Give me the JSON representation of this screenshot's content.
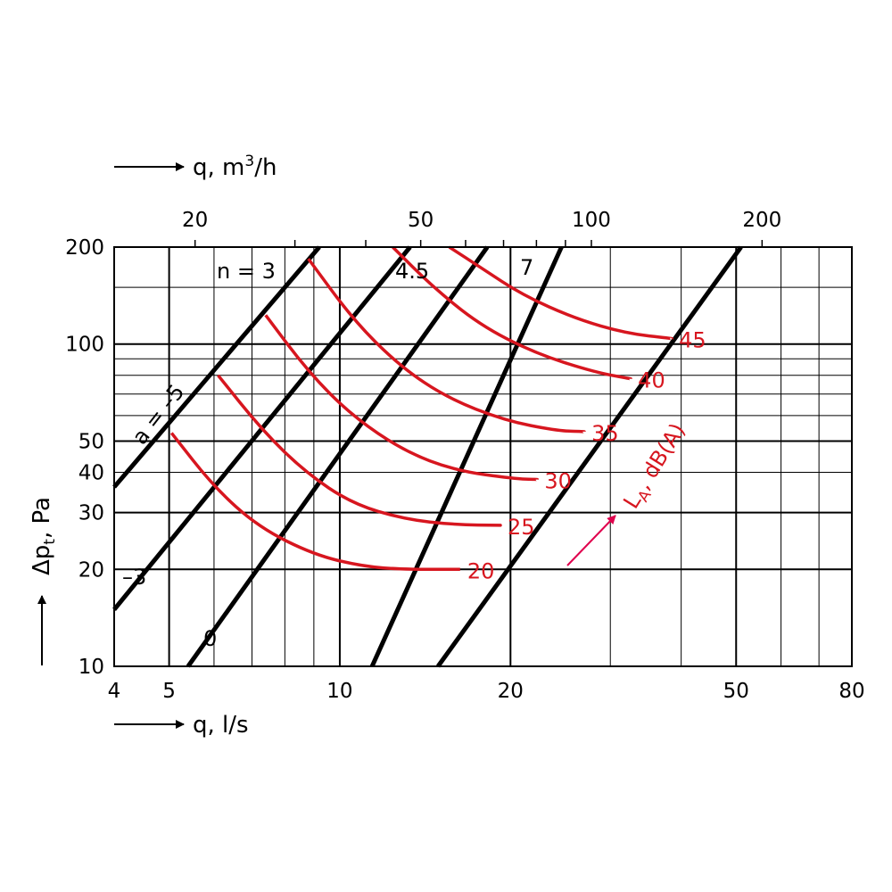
{
  "chart_data": {
    "type": "line",
    "x_scale": "log",
    "y_scale": "log",
    "xlim": [
      4,
      80
    ],
    "ylim": [
      10,
      200
    ],
    "xlabel": "q, l/s",
    "ylabel": "Δp",
    "ylabel_sub": "t",
    "ylabel_unit": ", Pa",
    "x2label": "q, m",
    "x2label_sup": "3",
    "x2label_unit": "/h",
    "x_ticks": [
      4,
      5,
      10,
      20,
      50,
      80
    ],
    "y_ticks": [
      10,
      20,
      30,
      40,
      50,
      100,
      200
    ],
    "x2_ticks": [
      20,
      50,
      100,
      200
    ],
    "grid": true,
    "adjustment_lines": [
      {
        "label": "a = –5",
        "points": [
          [
            4,
            36
          ],
          [
            9.2,
            200
          ]
        ]
      },
      {
        "label": "–3",
        "points": [
          [
            4,
            15
          ],
          [
            13.3,
            200
          ]
        ]
      },
      {
        "label": "0",
        "points": [
          [
            5.4,
            10
          ],
          [
            18.2,
            200
          ]
        ]
      },
      {
        "label": "",
        "points": [
          [
            11.4,
            10
          ],
          [
            24.6,
            200
          ]
        ]
      },
      {
        "label": "",
        "points": [
          [
            14.9,
            10
          ],
          [
            51,
            200
          ]
        ]
      }
    ],
    "n_labels": [
      "n = 3",
      "4.5",
      "7"
    ],
    "sound_curves": [
      {
        "name": "20",
        "points": [
          [
            5.05,
            53
          ],
          [
            6.0,
            36
          ],
          [
            7.2,
            27
          ],
          [
            9.0,
            22.2
          ],
          [
            11.0,
            20.4
          ],
          [
            13.0,
            20
          ],
          [
            16.3,
            20
          ]
        ]
      },
      {
        "name": "25",
        "points": [
          [
            6.1,
            80
          ],
          [
            7.3,
            54
          ],
          [
            8.7,
            40
          ],
          [
            10.5,
            32
          ],
          [
            13.0,
            28.6
          ],
          [
            16.0,
            27.5
          ],
          [
            19.2,
            27.4
          ]
        ]
      },
      {
        "name": "30",
        "points": [
          [
            7.4,
            123
          ],
          [
            8.8,
            82
          ],
          [
            10.5,
            60
          ],
          [
            13.0,
            46.5
          ],
          [
            16.0,
            40.5
          ],
          [
            20.3,
            38.2
          ],
          [
            22.3,
            38
          ]
        ]
      },
      {
        "name": "35",
        "points": [
          [
            8.8,
            184
          ],
          [
            10.6,
            118
          ],
          [
            12.8,
            85
          ],
          [
            15.5,
            68
          ],
          [
            19.5,
            58
          ],
          [
            24.2,
            53.8
          ],
          [
            27.0,
            53.5
          ]
        ]
      },
      {
        "name": "40",
        "points": [
          [
            12.4,
            200
          ],
          [
            14.5,
            152
          ],
          [
            17.6,
            115
          ],
          [
            22.0,
            94
          ],
          [
            28.0,
            82
          ],
          [
            32.6,
            78
          ]
        ]
      },
      {
        "name": "45",
        "points": [
          [
            15.6,
            200
          ],
          [
            17.8,
            172
          ],
          [
            21.0,
            142
          ],
          [
            26.0,
            120
          ],
          [
            32.0,
            108
          ],
          [
            38.5,
            104
          ]
        ]
      }
    ],
    "sound_legend": {
      "label": "L",
      "label_sub": "A",
      "label_unit": ", dB(A)"
    }
  }
}
